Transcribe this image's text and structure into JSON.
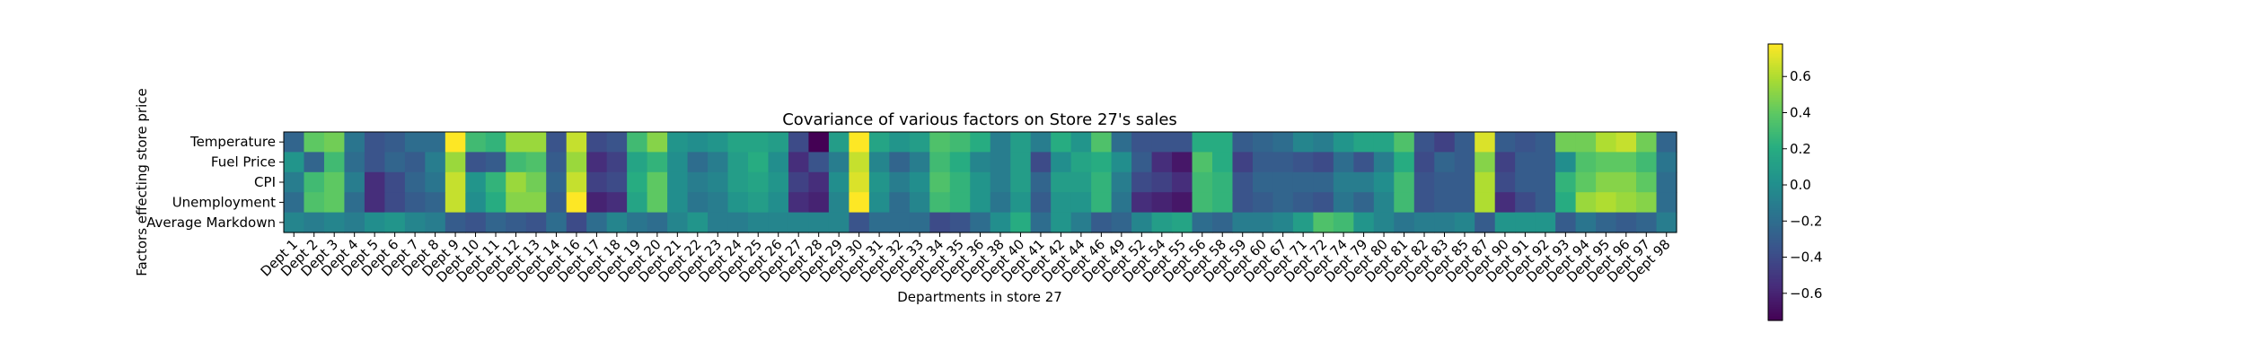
{
  "chart_data": {
    "type": "heatmap",
    "title": "Covariance of various factors on Store 27's sales",
    "xlabel": "Departments in store 27",
    "ylabel": "Factors effecting store price",
    "colormap": "viridis",
    "vmin": -0.75,
    "vmax": 0.78,
    "colorbar_ticks": [
      -0.6,
      -0.4,
      -0.2,
      0.0,
      0.2,
      0.4,
      0.6
    ],
    "colorbar_tick_labels": [
      "−0.6",
      "−0.4",
      "−0.2",
      "0.0",
      "0.2",
      "0.4",
      "0.6"
    ],
    "x_categories": [
      "Dept 1",
      "Dept 2",
      "Dept 3",
      "Dept 4",
      "Dept 5",
      "Dept 6",
      "Dept 7",
      "Dept 8",
      "Dept 9",
      "Dept 10",
      "Dept 11",
      "Dept 12",
      "Dept 13",
      "Dept 14",
      "Dept 16",
      "Dept 17",
      "Dept 18",
      "Dept 19",
      "Dept 20",
      "Dept 21",
      "Dept 22",
      "Dept 23",
      "Dept 24",
      "Dept 25",
      "Dept 26",
      "Dept 27",
      "Dept 28",
      "Dept 29",
      "Dept 30",
      "Dept 31",
      "Dept 32",
      "Dept 33",
      "Dept 34",
      "Dept 35",
      "Dept 36",
      "Dept 38",
      "Dept 40",
      "Dept 41",
      "Dept 42",
      "Dept 44",
      "Dept 46",
      "Dept 49",
      "Dept 52",
      "Dept 54",
      "Dept 55",
      "Dept 56",
      "Dept 58",
      "Dept 59",
      "Dept 60",
      "Dept 67",
      "Dept 71",
      "Dept 72",
      "Dept 74",
      "Dept 79",
      "Dept 80",
      "Dept 81",
      "Dept 82",
      "Dept 83",
      "Dept 85",
      "Dept 87",
      "Dept 90",
      "Dept 91",
      "Dept 92",
      "Dept 93",
      "Dept 94",
      "Dept 95",
      "Dept 96",
      "Dept 97",
      "Dept 98"
    ],
    "y_categories": [
      "Temperature",
      "Fuel Price",
      "CPI",
      "Unemployment",
      "Average Markdown"
    ],
    "values": [
      [
        -0.25,
        0.4,
        0.45,
        -0.15,
        -0.35,
        -0.3,
        -0.2,
        -0.2,
        0.78,
        0.3,
        0.25,
        0.55,
        0.55,
        -0.35,
        0.65,
        -0.4,
        -0.35,
        0.3,
        0.5,
        0.05,
        0.0,
        0.05,
        0.15,
        0.15,
        0.1,
        -0.4,
        -0.75,
        0.1,
        0.78,
        0.15,
        0.05,
        0.1,
        0.35,
        0.3,
        0.2,
        -0.1,
        0.1,
        -0.1,
        0.2,
        0.05,
        0.35,
        -0.2,
        -0.35,
        -0.35,
        -0.35,
        0.2,
        0.2,
        -0.3,
        -0.25,
        -0.2,
        -0.05,
        -0.1,
        0.05,
        0.15,
        0.15,
        0.35,
        -0.35,
        -0.45,
        -0.3,
        0.7,
        -0.3,
        -0.35,
        -0.3,
        0.45,
        0.45,
        0.6,
        0.65,
        0.45,
        -0.25
      ],
      [
        0.05,
        -0.25,
        0.3,
        -0.2,
        -0.35,
        -0.25,
        -0.3,
        -0.1,
        0.55,
        -0.35,
        -0.3,
        0.3,
        0.35,
        -0.3,
        0.55,
        -0.55,
        -0.45,
        0.15,
        0.25,
        0.0,
        -0.2,
        -0.1,
        0.1,
        0.2,
        0.0,
        -0.55,
        -0.35,
        -0.1,
        0.65,
        -0.05,
        -0.25,
        -0.1,
        0.3,
        0.2,
        -0.05,
        -0.1,
        0.1,
        -0.4,
        0.0,
        0.15,
        0.2,
        0.0,
        -0.3,
        -0.55,
        -0.65,
        0.35,
        0.2,
        -0.45,
        -0.3,
        -0.3,
        -0.35,
        -0.4,
        -0.2,
        -0.35,
        -0.1,
        0.2,
        -0.4,
        -0.25,
        -0.3,
        0.5,
        -0.45,
        -0.3,
        -0.3,
        0.0,
        0.35,
        0.4,
        0.4,
        0.3,
        -0.15
      ],
      [
        -0.1,
        0.3,
        0.4,
        -0.1,
        -0.55,
        -0.4,
        -0.25,
        -0.15,
        0.65,
        0.05,
        0.25,
        0.55,
        0.45,
        -0.25,
        0.65,
        -0.45,
        -0.4,
        0.2,
        0.4,
        0.0,
        -0.1,
        -0.05,
        0.1,
        0.15,
        0.05,
        -0.45,
        -0.55,
        0.0,
        0.7,
        0.05,
        -0.1,
        0.0,
        0.35,
        0.25,
        0.05,
        -0.1,
        0.1,
        -0.25,
        0.1,
        0.1,
        0.25,
        -0.1,
        -0.4,
        -0.45,
        -0.55,
        0.3,
        0.25,
        -0.35,
        -0.25,
        -0.25,
        -0.25,
        -0.25,
        -0.1,
        -0.1,
        0.0,
        0.3,
        -0.35,
        -0.3,
        -0.3,
        0.6,
        -0.4,
        -0.3,
        -0.3,
        0.25,
        0.4,
        0.5,
        0.5,
        0.4,
        -0.2
      ],
      [
        -0.2,
        0.35,
        0.4,
        -0.2,
        -0.55,
        -0.4,
        -0.3,
        -0.25,
        0.65,
        0.0,
        0.2,
        0.5,
        0.5,
        -0.3,
        0.78,
        -0.6,
        -0.55,
        0.15,
        0.4,
        0.0,
        -0.15,
        -0.1,
        0.05,
        0.1,
        0.0,
        -0.55,
        -0.6,
        -0.05,
        0.78,
        0.0,
        -0.2,
        -0.05,
        0.3,
        0.25,
        0.05,
        -0.15,
        0.05,
        -0.3,
        0.05,
        0.05,
        0.25,
        -0.15,
        -0.55,
        -0.6,
        -0.65,
        0.3,
        0.25,
        -0.35,
        -0.3,
        -0.25,
        -0.3,
        -0.35,
        -0.15,
        -0.25,
        -0.05,
        0.3,
        -0.35,
        -0.3,
        -0.3,
        0.6,
        -0.55,
        -0.4,
        -0.3,
        0.2,
        0.55,
        0.6,
        0.55,
        0.5,
        -0.2
      ],
      [
        -0.05,
        -0.1,
        -0.05,
        -0.1,
        0.0,
        0.05,
        -0.05,
        -0.1,
        -0.3,
        -0.35,
        -0.25,
        -0.3,
        -0.35,
        -0.2,
        -0.4,
        -0.2,
        -0.05,
        -0.15,
        -0.2,
        -0.05,
        0.05,
        -0.1,
        -0.1,
        -0.05,
        -0.05,
        -0.05,
        -0.05,
        -0.05,
        -0.35,
        -0.2,
        -0.2,
        -0.2,
        -0.4,
        -0.35,
        -0.2,
        0.0,
        0.2,
        -0.2,
        0.05,
        -0.1,
        -0.3,
        -0.25,
        -0.05,
        0.1,
        0.15,
        -0.2,
        -0.25,
        -0.1,
        -0.1,
        -0.05,
        0.1,
        0.35,
        0.3,
        0.05,
        -0.05,
        -0.15,
        -0.1,
        -0.1,
        -0.05,
        -0.3,
        0.05,
        0.05,
        0.05,
        -0.3,
        -0.15,
        -0.25,
        -0.3,
        -0.25,
        -0.1
      ]
    ]
  }
}
